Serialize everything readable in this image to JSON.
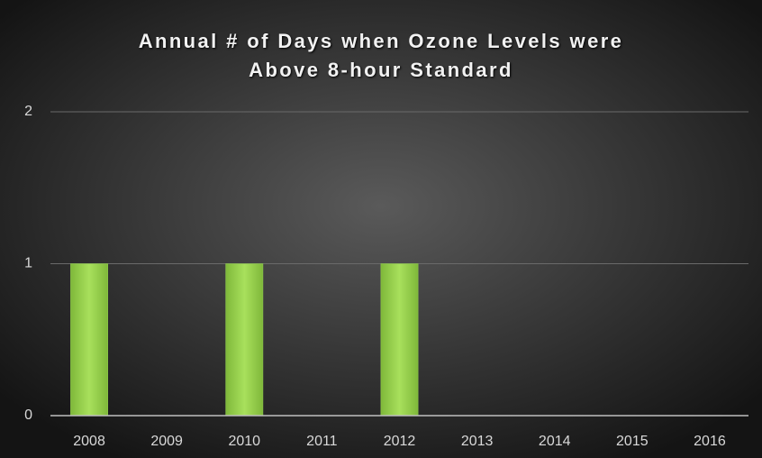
{
  "chart_data": {
    "type": "bar",
    "title": "Annual # of Days when Ozone Levels were Above 8-hour Standard",
    "categories": [
      "2008",
      "2009",
      "2010",
      "2011",
      "2012",
      "2013",
      "2014",
      "2015",
      "2016"
    ],
    "values": [
      1,
      0,
      1,
      0,
      1,
      0,
      0,
      0,
      0
    ],
    "color": "#92d050",
    "ylim": [
      0,
      2
    ],
    "yticks": [
      0,
      1,
      2
    ],
    "grid": true
  }
}
